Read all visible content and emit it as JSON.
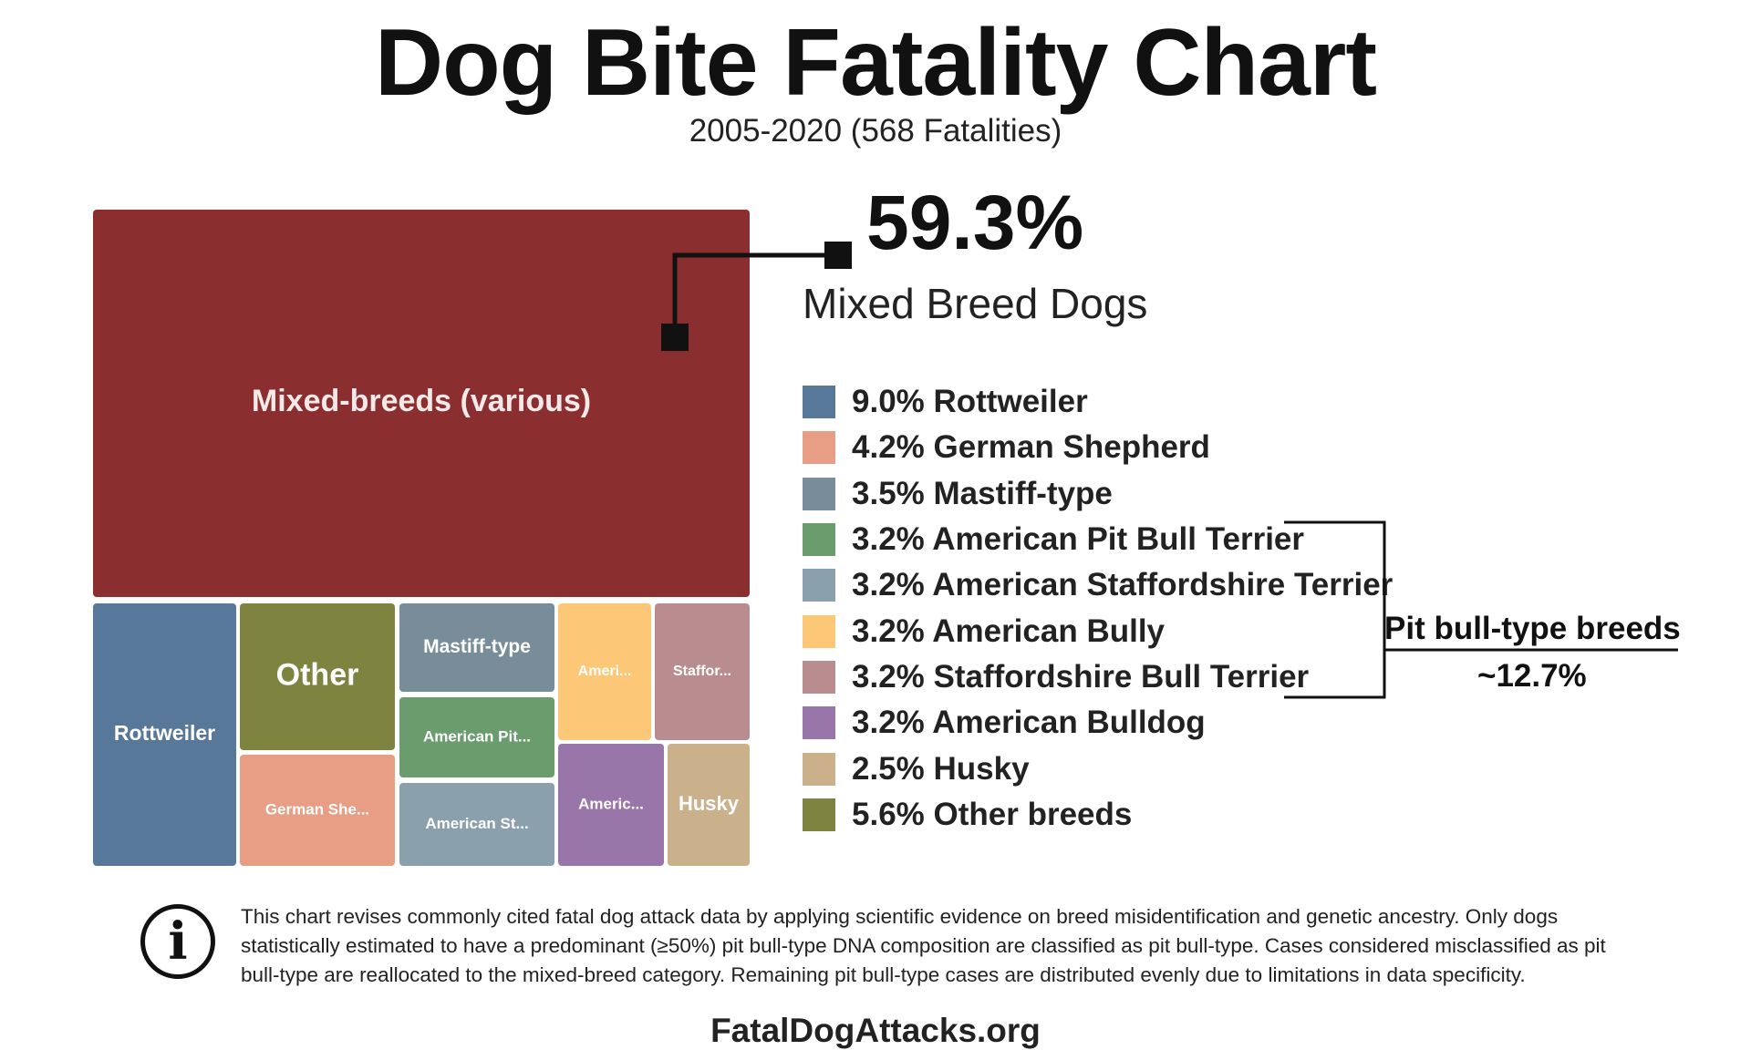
{
  "header": {
    "title": "Dog Bite Fatality Chart",
    "subtitle": "2005-2020 (568 Fatalities)"
  },
  "highlight": {
    "percent": "59.3%",
    "label": "Mixed Breed Dogs"
  },
  "chart_data": {
    "type": "treemap",
    "title": "Dog Bite Fatality Chart",
    "subtitle": "2005-2020 (568 Fatalities)",
    "total_fatalities": 568,
    "unit": "percent of fatalities",
    "tiles": [
      {
        "label": "Mixed-breeds (various)",
        "value": 59.3,
        "color": "#8B2E2F"
      },
      {
        "label": "Rottweiler",
        "value": 9.0,
        "color": "#587899"
      },
      {
        "label": "Other",
        "value": 5.6,
        "color": "#7E8440"
      },
      {
        "label": "German She...",
        "value": 4.2,
        "color": "#E89D85"
      },
      {
        "label": "Mastiff-type",
        "value": 3.5,
        "color": "#788D99"
      },
      {
        "label": "American Pit...",
        "value": 3.2,
        "color": "#6A9C6E"
      },
      {
        "label": "American St...",
        "value": 3.2,
        "color": "#8AA0AC"
      },
      {
        "label": "Ameri...",
        "value": 3.2,
        "color": "#FCC776"
      },
      {
        "label": "Staffor...",
        "value": 3.2,
        "color": "#B98C90"
      },
      {
        "label": "Americ...",
        "value": 3.2,
        "color": "#9976AA"
      },
      {
        "label": "Husky",
        "value": 2.5,
        "color": "#CBB08C"
      }
    ],
    "legend": [
      {
        "text": "9.0% Rottweiler",
        "value": 9.0,
        "color": "#587899"
      },
      {
        "text": "4.2% German Shepherd",
        "value": 4.2,
        "color": "#E89D85"
      },
      {
        "text": "3.5% Mastiff-type",
        "value": 3.5,
        "color": "#788D99"
      },
      {
        "text": "3.2% American Pit Bull Terrier",
        "value": 3.2,
        "color": "#6A9C6E"
      },
      {
        "text": "3.2% American Staffordshire Terrier",
        "value": 3.2,
        "color": "#8AA0AC"
      },
      {
        "text": "3.2% American Bully",
        "value": 3.2,
        "color": "#FCC776"
      },
      {
        "text": "3.2% Staffordshire Bull Terrier",
        "value": 3.2,
        "color": "#B98C90"
      },
      {
        "text": "3.2% American Bulldog",
        "value": 3.2,
        "color": "#9976AA"
      },
      {
        "text": "2.5% Husky",
        "value": 2.5,
        "color": "#CBB08C"
      },
      {
        "text": "5.6% Other breeds",
        "value": 5.6,
        "color": "#7E8440"
      }
    ],
    "group_annotation": {
      "label": "Pit bull-type breeds",
      "value": "~12.7%"
    }
  },
  "note": {
    "icon": "info-icon",
    "text": "This chart revises commonly cited fatal dog attack data by applying scientific evidence on breed misidentification and genetic ancestry. Only dogs statistically estimated to have a predominant (≥50%) pit bull-type DNA composition are classified as pit bull-type. Cases considered misclassified as pit bull-type are reallocated to the mixed-breed category. Remaining pit bull-type cases are distributed evenly due to limitations in data specificity."
  },
  "footer": {
    "site": "FatalDogAttacks.org"
  }
}
